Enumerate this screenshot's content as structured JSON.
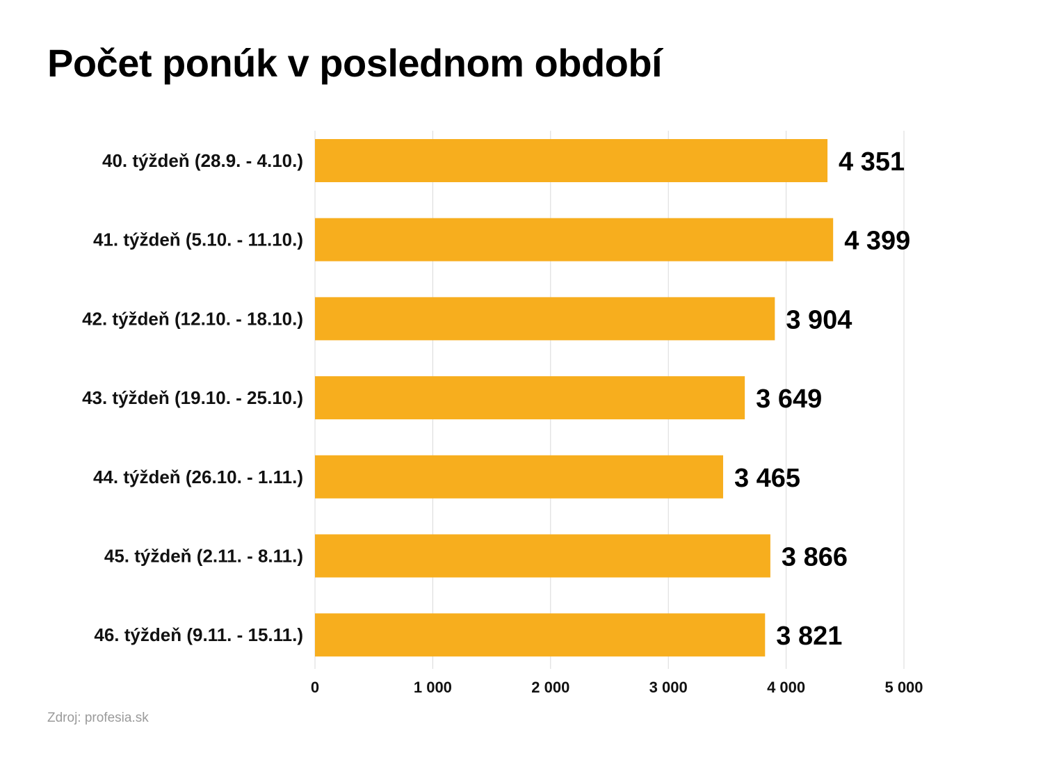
{
  "chart_data": {
    "type": "bar",
    "orientation": "horizontal",
    "title": "Počet ponúk v poslednom období",
    "categories": [
      "40. týždeň (28.9. - 4.10.)",
      "41. týždeň (5.10. - 11.10.)",
      "42. týždeň (12.10. - 18.10.)",
      "43. týždeň (19.10. - 25.10.)",
      "44. týždeň (26.10. - 1.11.)",
      "45. týždeň (2.11. - 8.11.)",
      "46. týždeň (9.11. - 15.11.)"
    ],
    "values": [
      4351,
      4399,
      3904,
      3649,
      3465,
      3866,
      3821
    ],
    "value_labels": [
      "4 351",
      "4 399",
      "3 904",
      "3 649",
      "3 465",
      "3 866",
      "3 821"
    ],
    "xticks": [
      0,
      1000,
      2000,
      3000,
      4000,
      5000
    ],
    "xtick_labels": [
      "0",
      "1 000",
      "2 000",
      "3 000",
      "4 000",
      "5 000"
    ],
    "xlim": [
      0,
      5000
    ],
    "grid": "vertical",
    "bar_color": "#F7AE1E",
    "grid_color": "#d9d9d9"
  },
  "footer": {
    "source": "Zdroj: profesia.sk"
  }
}
